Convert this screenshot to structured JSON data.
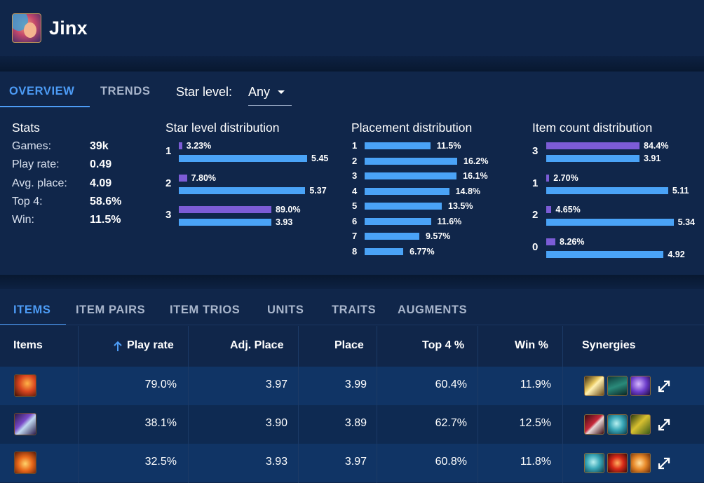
{
  "champion": {
    "name": "Jinx"
  },
  "tabs_top": [
    {
      "label": "OVERVIEW",
      "active": true
    },
    {
      "label": "TRENDS",
      "active": false
    }
  ],
  "star_filter": {
    "label": "Star level:",
    "value": "Any"
  },
  "stats": {
    "title": "Stats",
    "rows": [
      {
        "label": "Games:",
        "value": "39k"
      },
      {
        "label": "Play rate:",
        "value": "0.49"
      },
      {
        "label": "Avg. place:",
        "value": "4.09"
      },
      {
        "label": "Top 4:",
        "value": "58.6%"
      },
      {
        "label": "Win:",
        "value": "11.5%"
      }
    ]
  },
  "star_distribution": {
    "title": "Star level distribution",
    "rows": [
      {
        "key": "1",
        "pct": "3.23%",
        "pct_value": 3.23,
        "avg": "5.45",
        "avg_value": 5.45
      },
      {
        "key": "2",
        "pct": "7.80%",
        "pct_value": 7.8,
        "avg": "5.37",
        "avg_value": 5.37
      },
      {
        "key": "3",
        "pct": "89.0%",
        "pct_value": 89.0,
        "avg": "3.93",
        "avg_value": 3.93
      }
    ]
  },
  "placement_distribution": {
    "title": "Placement distribution",
    "rows": [
      {
        "key": "1",
        "pct": "11.5%",
        "value": 11.5
      },
      {
        "key": "2",
        "pct": "16.2%",
        "value": 16.2
      },
      {
        "key": "3",
        "pct": "16.1%",
        "value": 16.1
      },
      {
        "key": "4",
        "pct": "14.8%",
        "value": 14.8
      },
      {
        "key": "5",
        "pct": "13.5%",
        "value": 13.5
      },
      {
        "key": "6",
        "pct": "11.6%",
        "value": 11.6
      },
      {
        "key": "7",
        "pct": "9.57%",
        "value": 9.57
      },
      {
        "key": "8",
        "pct": "6.77%",
        "value": 6.77
      }
    ]
  },
  "item_count_distribution": {
    "title": "Item count distribution",
    "rows": [
      {
        "key": "3",
        "pct": "84.4%",
        "pct_value": 84.4,
        "avg": "3.91",
        "avg_value": 3.91
      },
      {
        "key": "1",
        "pct": "2.70%",
        "pct_value": 2.7,
        "avg": "5.11",
        "avg_value": 5.11
      },
      {
        "key": "2",
        "pct": "4.65%",
        "pct_value": 4.65,
        "avg": "5.34",
        "avg_value": 5.34
      },
      {
        "key": "0",
        "pct": "8.26%",
        "pct_value": 8.26,
        "avg": "4.92",
        "avg_value": 4.92
      }
    ]
  },
  "tabs_bottom": [
    {
      "label": "ITEMS",
      "active": true
    },
    {
      "label": "ITEM PAIRS",
      "active": false
    },
    {
      "label": "ITEM TRIOS",
      "active": false
    },
    {
      "label": "UNITS",
      "active": false
    },
    {
      "label": "TRAITS",
      "active": false
    },
    {
      "label": "AUGMENTS",
      "active": false
    }
  ],
  "table": {
    "headers": {
      "items": "Items",
      "play_rate": "Play rate",
      "adj_place": "Adj. Place",
      "place": "Place",
      "top4": "Top 4 %",
      "win": "Win %",
      "synergies": "Synergies"
    },
    "sort_icon": "arrow-up-icon",
    "rows": [
      {
        "item_icon": "fiery-blade-item-icon",
        "play_rate": "79.0%",
        "adj_place": "3.97",
        "place": "3.99",
        "top4": "60.4%",
        "win": "11.9%",
        "synergies": [
          "golden-bow-icon",
          "green-cloak-icon",
          "purple-claw-icon"
        ]
      },
      {
        "item_icon": "crossbow-item-icon",
        "play_rate": "38.1%",
        "adj_place": "3.90",
        "place": "3.89",
        "top4": "62.7%",
        "win": "12.5%",
        "synergies": [
          "red-blade-icon",
          "teal-shell-icon",
          "gold-triangle-icon"
        ]
      },
      {
        "item_icon": "flame-hand-item-icon",
        "play_rate": "32.5%",
        "adj_place": "3.93",
        "place": "3.97",
        "top4": "60.8%",
        "win": "11.8%",
        "synergies": [
          "teal-shell-icon",
          "red-orb-icon",
          "orange-claw-icon"
        ]
      }
    ]
  },
  "colors": {
    "accent": "#4d9cf6",
    "bar_purple": "#7c5cd6",
    "bar_blue": "#4aa3f7",
    "panel": "#10264a",
    "background": "#0b1d3a"
  }
}
